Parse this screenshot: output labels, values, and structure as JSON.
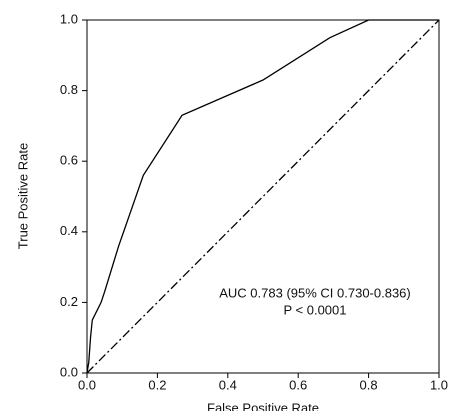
{
  "chart_data": {
    "type": "line",
    "xlabel": "False Positive Rate",
    "ylabel": "True Positive Rate",
    "annotations": [
      "AUC 0.783 (95% CI 0.730-0.836)",
      "P < 0.0001"
    ],
    "xlim": [
      0,
      1
    ],
    "ylim": [
      0,
      1
    ],
    "xticks": [
      {
        "value": 0,
        "label": "0.0"
      },
      0.2,
      0.4,
      0.6,
      0.8,
      {
        "value": 1,
        "label": "1.0"
      }
    ],
    "yticks": [
      {
        "value": 0,
        "label": "0.0"
      },
      0.2,
      0.4,
      0.6,
      0.8,
      {
        "value": 1,
        "label": "1.0"
      }
    ],
    "series": [
      {
        "color": "#000000",
        "style": "solid",
        "x": [
          0,
          0.005,
          0.01,
          0.015,
          0.04,
          0.05,
          0.09,
          0.16,
          0.27,
          0.5,
          0.69,
          0.8,
          1.0
        ],
        "values": [
          0,
          0.03,
          0.1,
          0.15,
          0.2,
          0.23,
          0.36,
          0.56,
          0.73,
          0.83,
          0.95,
          1.0,
          1.0
        ]
      },
      {
        "color": "#000000",
        "style": "dashdot",
        "x": [
          0,
          1
        ],
        "values": [
          0,
          1
        ]
      }
    ]
  }
}
